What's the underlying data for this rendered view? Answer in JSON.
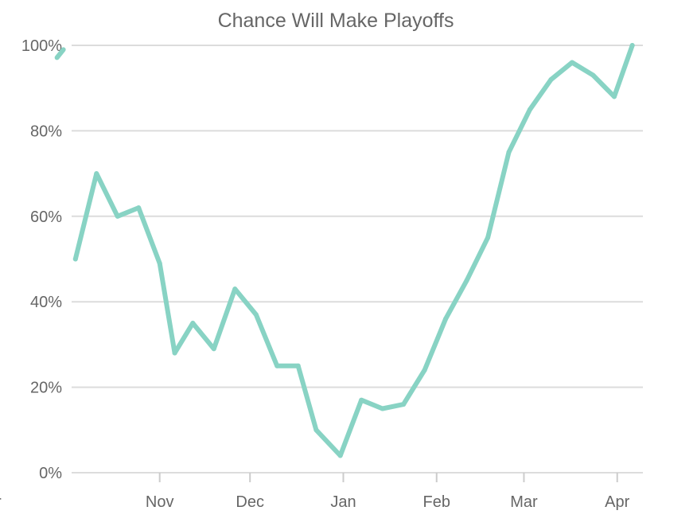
{
  "chart_data": {
    "type": "line",
    "title": "Chance Will Make Playoffs",
    "ylim": [
      0,
      100
    ],
    "yticks": [
      {
        "value": 0,
        "label": "0%"
      },
      {
        "value": 20,
        "label": "20%"
      },
      {
        "value": 40,
        "label": "40%"
      },
      {
        "value": 60,
        "label": "60%"
      },
      {
        "value": 80,
        "label": "80%"
      },
      {
        "value": 100,
        "label": "100%"
      }
    ],
    "xlim": [
      "2019-10-03",
      "2020-04-09"
    ],
    "xticks": [
      {
        "date": "2019-11-01",
        "label": "Nov"
      },
      {
        "date": "2019-12-01",
        "label": "Dec"
      },
      {
        "date": "2020-01-01",
        "label": "Jan"
      },
      {
        "date": "2020-02-01",
        "label": "Feb"
      },
      {
        "date": "2020-03-01",
        "label": "Mar"
      },
      {
        "date": "2020-04-01",
        "label": "Apr"
      }
    ],
    "clipped_left": {
      "tick_label": "r",
      "point": {
        "date": "2019-09-30",
        "value": 99
      }
    },
    "grid": true,
    "legend": "none",
    "series_color": "#88d3c4",
    "series": [
      {
        "points": [
          {
            "x": "2019-10-04",
            "y": 50
          },
          {
            "x": "2019-10-11",
            "y": 70
          },
          {
            "x": "2019-10-18",
            "y": 60
          },
          {
            "x": "2019-10-25",
            "y": 62
          },
          {
            "x": "2019-11-01",
            "y": 49
          },
          {
            "x": "2019-11-06",
            "y": 28
          },
          {
            "x": "2019-11-12",
            "y": 35
          },
          {
            "x": "2019-11-19",
            "y": 29
          },
          {
            "x": "2019-11-26",
            "y": 43
          },
          {
            "x": "2019-12-03",
            "y": 37
          },
          {
            "x": "2019-12-10",
            "y": 25
          },
          {
            "x": "2019-12-17",
            "y": 25
          },
          {
            "x": "2019-12-23",
            "y": 10
          },
          {
            "x": "2019-12-31",
            "y": 4
          },
          {
            "x": "2020-01-07",
            "y": 17
          },
          {
            "x": "2020-01-14",
            "y": 15
          },
          {
            "x": "2020-01-21",
            "y": 16
          },
          {
            "x": "2020-01-28",
            "y": 24
          },
          {
            "x": "2020-02-04",
            "y": 36
          },
          {
            "x": "2020-02-11",
            "y": 45
          },
          {
            "x": "2020-02-18",
            "y": 55
          },
          {
            "x": "2020-02-25",
            "y": 75
          },
          {
            "x": "2020-03-03",
            "y": 85
          },
          {
            "x": "2020-03-10",
            "y": 92
          },
          {
            "x": "2020-03-17",
            "y": 96
          },
          {
            "x": "2020-03-24",
            "y": 93
          },
          {
            "x": "2020-03-31",
            "y": 88
          },
          {
            "x": "2020-04-06",
            "y": 100
          }
        ]
      }
    ]
  }
}
